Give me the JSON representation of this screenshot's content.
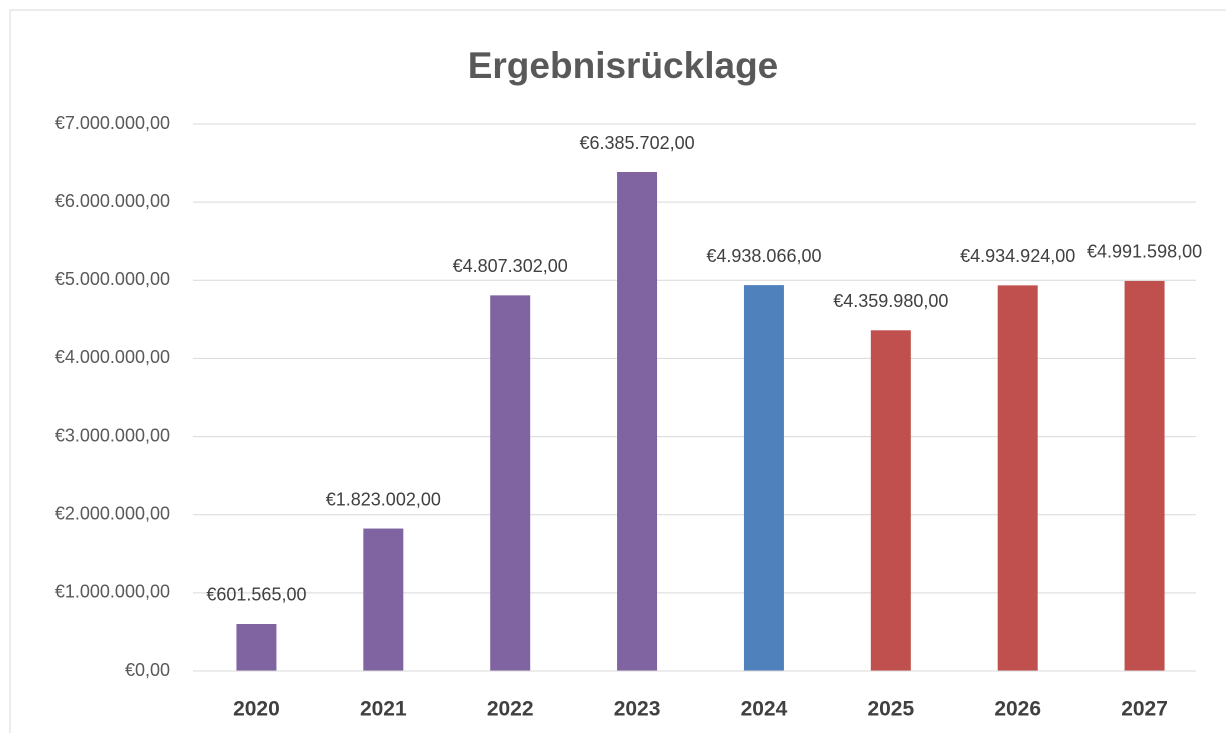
{
  "chart_data": {
    "type": "bar",
    "title": "Ergebnisrücklage",
    "categories": [
      "2020",
      "2021",
      "2022",
      "2023",
      "2024",
      "2025",
      "2026",
      "2027"
    ],
    "values": [
      601565,
      1823002,
      4807302,
      6385702,
      4938066,
      4359980,
      4934924,
      4991598
    ],
    "value_labels": [
      "€601.565,00",
      "€1.823.002,00",
      "€4.807.302,00",
      "€6.385.702,00",
      "€4.938.066,00",
      "€4.359.980,00",
      "€4.934.924,00",
      "€4.991.598,00"
    ],
    "colors": [
      "#8064a2",
      "#8064a2",
      "#8064a2",
      "#8064a2",
      "#4f81bd",
      "#c0504d",
      "#c0504d",
      "#c0504d"
    ],
    "ylim": [
      0,
      7000000
    ],
    "yticks": [
      {
        "value": 0,
        "label": "€0,00"
      },
      {
        "value": 1000000,
        "label": "€1.000.000,00"
      },
      {
        "value": 2000000,
        "label": "€2.000.000,00"
      },
      {
        "value": 3000000,
        "label": "€3.000.000,00"
      },
      {
        "value": 4000000,
        "label": "€4.000.000,00"
      },
      {
        "value": 5000000,
        "label": "€5.000.000,00"
      },
      {
        "value": 6000000,
        "label": "€6.000.000,00"
      },
      {
        "value": 7000000,
        "label": "€7.000.000,00"
      }
    ],
    "grid": true
  }
}
